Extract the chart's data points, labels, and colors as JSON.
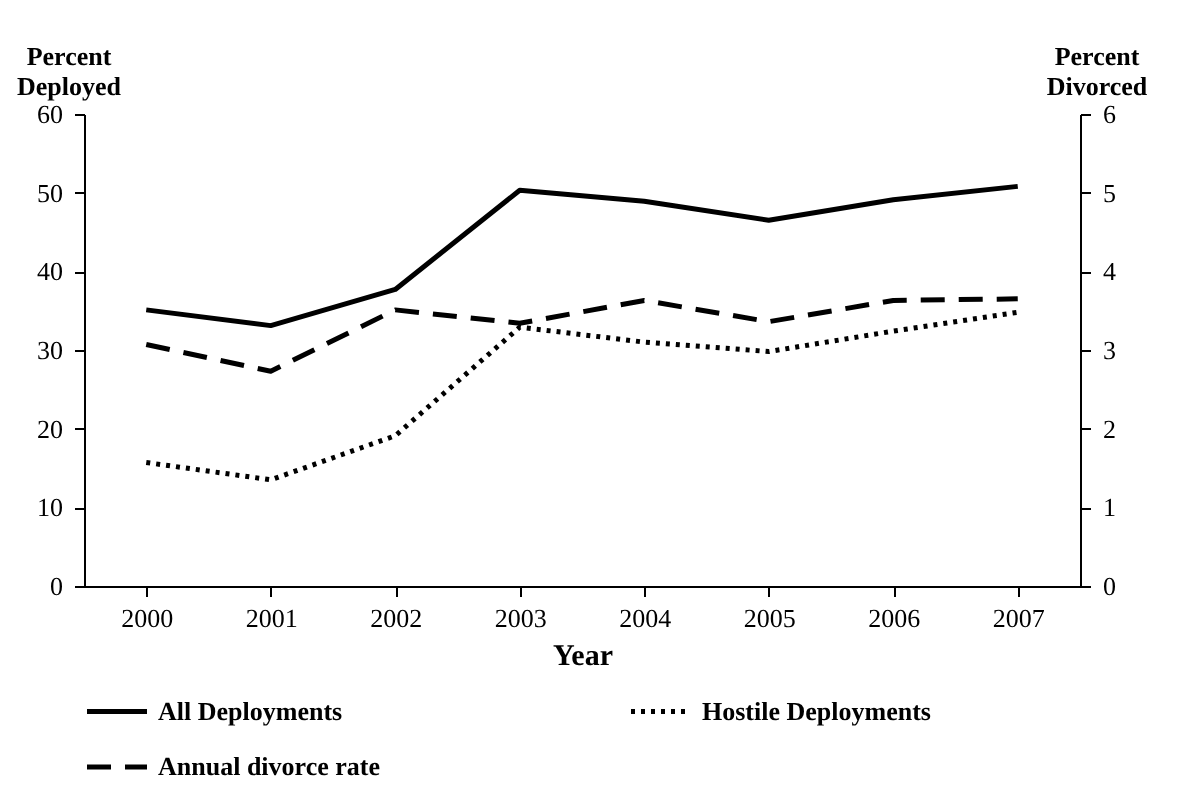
{
  "chart_data": {
    "type": "line",
    "xlabel": "Year",
    "ylabel": "Percent Deployed",
    "y2label": "Percent Divorced",
    "categories": [
      "2000",
      "2001",
      "2002",
      "2003",
      "2004",
      "2005",
      "2006",
      "2007"
    ],
    "ylim": [
      0,
      60
    ],
    "yticks": [
      0,
      10,
      20,
      30,
      40,
      50,
      60
    ],
    "y2lim": [
      0,
      6
    ],
    "y2ticks": [
      0,
      1,
      2,
      3,
      4,
      5,
      6
    ],
    "grid": false,
    "legend": "bottom",
    "marker": "none",
    "series": [
      {
        "name": "All Deployments",
        "color": "#000000",
        "line_style": "solid",
        "values": [
          35.1,
          33.1,
          37.7,
          50.3,
          48.9,
          46.5,
          49.1,
          50.8
        ]
      },
      {
        "name": "Hostile Deployments",
        "color": "#000000",
        "line_style": "dotted",
        "values": [
          15.7,
          13.5,
          19.1,
          32.9,
          31.0,
          29.8,
          32.4,
          34.8
        ]
      },
      {
        "name": "Annual divorce rate",
        "color": "#000000",
        "line_style": "dashed",
        "axis": "y2",
        "values": [
          3.07,
          2.73,
          3.51,
          3.34,
          3.63,
          3.36,
          3.63,
          3.65
        ]
      }
    ]
  }
}
